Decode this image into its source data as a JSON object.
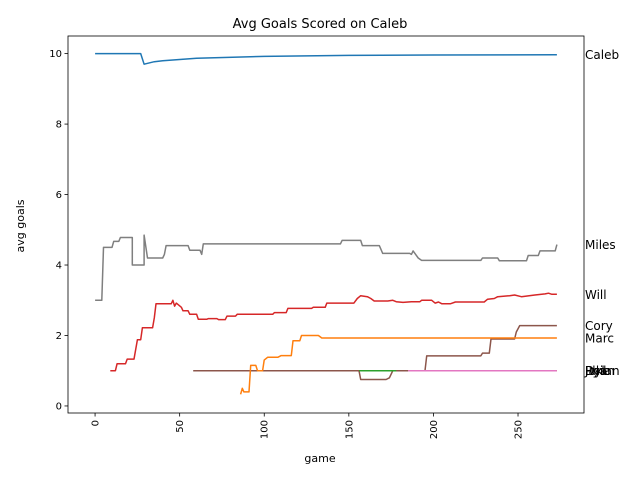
{
  "chart_data": {
    "type": "line",
    "title": "Avg Goals Scored on Caleb",
    "xlabel": "game",
    "ylabel": "avg goals",
    "xlim": [
      -16,
      289
    ],
    "ylim": [
      -0.2,
      10.5
    ],
    "xticks": [
      0,
      50,
      100,
      150,
      200,
      250
    ],
    "yticks": [
      0,
      2,
      4,
      6,
      8,
      10
    ],
    "grid": false,
    "legend": "labels at line ends (right side)",
    "series": [
      {
        "name": "Caleb",
        "color": "#1f77b4",
        "points": [
          [
            0,
            10
          ],
          [
            27,
            10
          ],
          [
            29,
            9.7
          ],
          [
            35,
            9.77
          ],
          [
            40,
            9.8
          ],
          [
            60,
            9.87
          ],
          [
            100,
            9.92
          ],
          [
            150,
            9.95
          ],
          [
            200,
            9.96
          ],
          [
            273,
            9.97
          ]
        ]
      },
      {
        "name": "Miles",
        "color": "#7f7f7f",
        "points": [
          [
            0,
            3
          ],
          [
            4,
            3
          ],
          [
            5,
            4.5
          ],
          [
            10,
            4.5
          ],
          [
            11,
            4.67
          ],
          [
            14,
            4.67
          ],
          [
            15,
            4.78
          ],
          [
            22,
            4.78
          ],
          [
            22,
            4
          ],
          [
            29,
            4
          ],
          [
            29,
            4.85
          ],
          [
            31,
            4.2
          ],
          [
            40,
            4.2
          ],
          [
            41,
            4.3
          ],
          [
            42,
            4.55
          ],
          [
            55,
            4.55
          ],
          [
            56,
            4.42
          ],
          [
            62,
            4.42
          ],
          [
            63,
            4.3
          ],
          [
            64,
            4.6
          ],
          [
            145,
            4.6
          ],
          [
            146,
            4.7
          ],
          [
            157,
            4.7
          ],
          [
            158,
            4.55
          ],
          [
            168,
            4.55
          ],
          [
            170,
            4.33
          ],
          [
            186,
            4.33
          ],
          [
            187,
            4.3
          ],
          [
            188,
            4.4
          ],
          [
            191,
            4.2
          ],
          [
            193,
            4.13
          ],
          [
            228,
            4.13
          ],
          [
            229,
            4.2
          ],
          [
            238,
            4.2
          ],
          [
            239,
            4.12
          ],
          [
            255,
            4.12
          ],
          [
            256,
            4.27
          ],
          [
            262,
            4.27
          ],
          [
            263,
            4.4
          ],
          [
            272,
            4.4
          ],
          [
            273,
            4.58
          ]
        ]
      },
      {
        "name": "Will",
        "color": "#d62728",
        "points": [
          [
            9,
            1
          ],
          [
            12,
            1
          ],
          [
            13,
            1.2
          ],
          [
            18,
            1.2
          ],
          [
            19,
            1.33
          ],
          [
            23,
            1.33
          ],
          [
            25,
            1.88
          ],
          [
            27,
            1.88
          ],
          [
            28,
            2.22
          ],
          [
            34,
            2.22
          ],
          [
            35,
            2.5
          ],
          [
            36,
            2.9
          ],
          [
            45,
            2.9
          ],
          [
            46,
            3
          ],
          [
            47,
            2.83
          ],
          [
            48,
            2.92
          ],
          [
            51,
            2.8
          ],
          [
            52,
            2.7
          ],
          [
            55,
            2.7
          ],
          [
            56,
            2.6
          ],
          [
            60,
            2.6
          ],
          [
            61,
            2.46
          ],
          [
            66,
            2.46
          ],
          [
            67,
            2.48
          ],
          [
            72,
            2.48
          ],
          [
            73,
            2.45
          ],
          [
            77,
            2.45
          ],
          [
            78,
            2.55
          ],
          [
            83,
            2.55
          ],
          [
            84,
            2.6
          ],
          [
            105,
            2.6
          ],
          [
            106,
            2.65
          ],
          [
            113,
            2.65
          ],
          [
            114,
            2.77
          ],
          [
            128,
            2.77
          ],
          [
            129,
            2.8
          ],
          [
            136,
            2.8
          ],
          [
            137,
            2.92
          ],
          [
            153,
            2.92
          ],
          [
            155,
            3.05
          ],
          [
            157,
            3.13
          ],
          [
            161,
            3.1
          ],
          [
            163,
            3.05
          ],
          [
            165,
            2.98
          ],
          [
            173,
            2.98
          ],
          [
            176,
            3.0
          ],
          [
            178,
            2.96
          ],
          [
            182,
            2.94
          ],
          [
            187,
            2.96
          ],
          [
            192,
            2.96
          ],
          [
            193,
            3.0
          ],
          [
            199,
            3.0
          ],
          [
            201,
            2.92
          ],
          [
            203,
            2.95
          ],
          [
            205,
            2.9
          ],
          [
            210,
            2.9
          ],
          [
            213,
            2.95
          ],
          [
            230,
            2.95
          ],
          [
            232,
            3.03
          ],
          [
            236,
            3.05
          ],
          [
            238,
            3.1
          ],
          [
            245,
            3.13
          ],
          [
            248,
            3.15
          ],
          [
            252,
            3.1
          ],
          [
            260,
            3.15
          ],
          [
            266,
            3.18
          ],
          [
            268,
            3.2
          ],
          [
            270,
            3.17
          ],
          [
            273,
            3.17
          ]
        ]
      },
      {
        "name": "Cory",
        "color": "#8c564b",
        "points": [
          [
            58,
            1
          ],
          [
            156,
            1
          ],
          [
            157,
            0.75
          ],
          [
            172,
            0.75
          ],
          [
            174,
            0.8
          ],
          [
            176,
            1
          ],
          [
            195,
            1
          ],
          [
            196,
            1.42
          ],
          [
            228,
            1.42
          ],
          [
            229,
            1.5
          ],
          [
            233,
            1.5
          ],
          [
            234,
            1.9
          ],
          [
            248,
            1.9
          ],
          [
            249,
            2.1
          ],
          [
            251,
            2.28
          ],
          [
            273,
            2.28
          ]
        ]
      },
      {
        "name": "Marc",
        "color": "#ff7f0e",
        "points": [
          [
            86,
            0.33
          ],
          [
            87,
            0.5
          ],
          [
            88,
            0.4
          ],
          [
            91,
            0.4
          ],
          [
            92,
            1.15
          ],
          [
            95,
            1.15
          ],
          [
            96,
            1.0
          ],
          [
            99,
            1.0
          ],
          [
            100,
            1.3
          ],
          [
            102,
            1.38
          ],
          [
            108,
            1.38
          ],
          [
            110,
            1.43
          ],
          [
            116,
            1.43
          ],
          [
            117,
            1.85
          ],
          [
            121,
            1.85
          ],
          [
            122,
            2.0
          ],
          [
            132,
            2.0
          ],
          [
            134,
            1.93
          ],
          [
            273,
            1.93
          ]
        ]
      },
      {
        "name": "Dylan",
        "color": "#2ca02c",
        "points": [
          [
            156,
            1
          ],
          [
            178,
            1
          ]
        ]
      },
      {
        "name": "Jake",
        "color": "#9467bd",
        "points": [
          [
            185,
            1
          ],
          [
            273,
            1
          ]
        ]
      },
      {
        "name": "Phil",
        "color": "#bcbd22",
        "points": [
          [
            185,
            1
          ],
          [
            273,
            1
          ]
        ]
      },
      {
        "name": "Ryan",
        "color": "#e377c2",
        "points": [
          [
            185,
            1
          ],
          [
            273,
            1
          ]
        ]
      }
    ],
    "end_labels": [
      {
        "name": "Caleb",
        "value": 9.97
      },
      {
        "name": "Miles",
        "value": 4.58
      },
      {
        "name": "Will",
        "value": 3.17
      },
      {
        "name": "Cory",
        "value": 2.28
      },
      {
        "name": "Marc",
        "value": 1.93
      },
      {
        "name": "Jake",
        "value": 1.0
      },
      {
        "name": "Phil",
        "value": 1.0
      },
      {
        "name": "Dylan",
        "value": 1.0
      },
      {
        "name": "Ryan",
        "value": 1.0
      }
    ]
  }
}
